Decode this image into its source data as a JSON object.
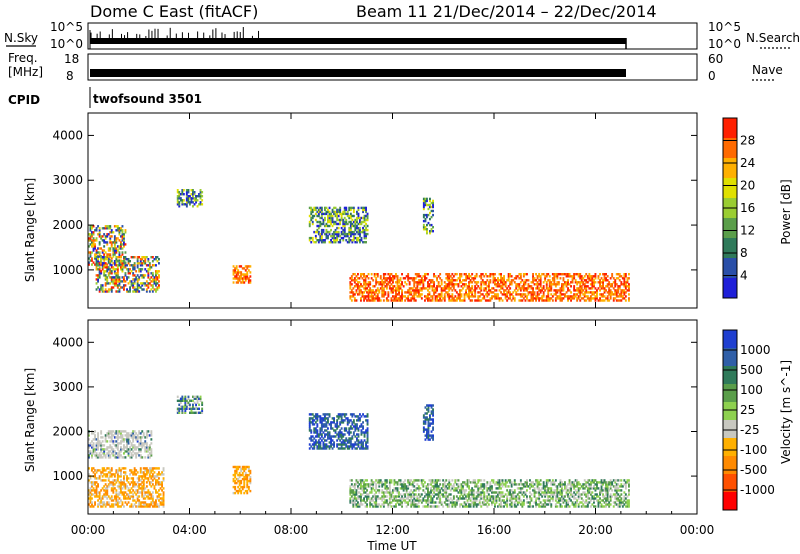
{
  "header": {
    "radar": "Dome C East (fitACF)",
    "beam_date": "Beam 11  21/Dec/2014 – 22/Dec/2014"
  },
  "panels": {
    "nsky_label": "N.Sky",
    "nsky_ticks": [
      "10^5",
      "10^0"
    ],
    "nsearch_label": "N.Search",
    "nsearch_ticks": [
      "10^5",
      "10^0"
    ],
    "freq_label_1": "Freq.",
    "freq_label_2": "[MHz]",
    "freq_ticks": [
      "18",
      "8"
    ],
    "nave_label": "Nave",
    "nave_ticks": [
      "60",
      "0"
    ],
    "cpid_label": "CPID",
    "cpid_value": "twofsound 3501"
  },
  "chart_data": [
    {
      "type": "heatmap",
      "name": "power",
      "ylabel": "Slant Range [km]",
      "yticks": [
        "1000",
        "2000",
        "3000",
        "4000"
      ],
      "ylim": [
        150,
        4500
      ],
      "colorbar_label": "Power [dB]",
      "colorbar_ticks": [
        "4",
        "8",
        "12",
        "16",
        "20",
        "24",
        "28"
      ],
      "colors": [
        "#1f20d8",
        "#2a4fa8",
        "#2f7a5a",
        "#5a9e4a",
        "#9acd32",
        "#e0e000",
        "#ffb000",
        "#ff6a00",
        "#ff2000"
      ],
      "scatter_regions": [
        {
          "t": [
            0.0,
            1.5
          ],
          "range": [
            1100,
            2000
          ],
          "level": "mixed-low-high"
        },
        {
          "t": [
            0.3,
            2.8
          ],
          "range": [
            500,
            1300
          ],
          "level": "mixed-low-high"
        },
        {
          "t": [
            3.5,
            4.5
          ],
          "range": [
            2400,
            2800
          ],
          "level": "mixed"
        },
        {
          "t": [
            5.7,
            6.4
          ],
          "range": [
            700,
            1100
          ],
          "level": "high"
        },
        {
          "t": [
            8.7,
            11.0
          ],
          "range": [
            1600,
            2400
          ],
          "level": "mixed"
        },
        {
          "t": [
            10.3,
            21.3
          ],
          "range": [
            300,
            900
          ],
          "level": "high"
        },
        {
          "t": [
            13.2,
            13.6
          ],
          "range": [
            1800,
            2600
          ],
          "level": "mixed"
        }
      ]
    },
    {
      "type": "heatmap",
      "name": "velocity",
      "ylabel": "Slant Range [km]",
      "xlabel": "Time UT",
      "yticks": [
        "1000",
        "2000",
        "3000",
        "4000"
      ],
      "xticks": [
        "00:00",
        "04:00",
        "08:00",
        "12:00",
        "16:00",
        "20:00",
        "00:00"
      ],
      "ylim": [
        150,
        4500
      ],
      "xlim": [
        0,
        24
      ],
      "colorbar_label": "Velocity [m s^-1]",
      "colorbar_ticks": [
        "1000",
        "500",
        "100",
        "25",
        "-25",
        "-100",
        "-500",
        "-1000"
      ],
      "colors": [
        "#1f3fd0",
        "#2f5fa8",
        "#2f7a5a",
        "#5a9e4a",
        "#8ed14f",
        "#c8c8c0",
        "#ffb000",
        "#ff8a00",
        "#ff5000",
        "#ff0000"
      ],
      "scatter_regions": [
        {
          "t": [
            0.0,
            2.5
          ],
          "range": [
            1400,
            2000
          ],
          "level": "ground-scatter-grey"
        },
        {
          "t": [
            0.0,
            3.0
          ],
          "range": [
            300,
            1200
          ],
          "level": "negative-orange"
        },
        {
          "t": [
            3.5,
            4.5
          ],
          "range": [
            2400,
            2800
          ],
          "level": "mixed"
        },
        {
          "t": [
            5.7,
            6.4
          ],
          "range": [
            600,
            1200
          ],
          "level": "negative-orange"
        },
        {
          "t": [
            8.7,
            11.0
          ],
          "range": [
            1600,
            2400
          ],
          "level": "positive-blue"
        },
        {
          "t": [
            10.3,
            21.3
          ],
          "range": [
            300,
            900
          ],
          "level": "positive-green"
        },
        {
          "t": [
            13.2,
            13.6
          ],
          "range": [
            1800,
            2600
          ],
          "level": "positive-blue"
        }
      ]
    }
  ],
  "colors": {
    "frame": "#000000",
    "background": "#ffffff"
  }
}
